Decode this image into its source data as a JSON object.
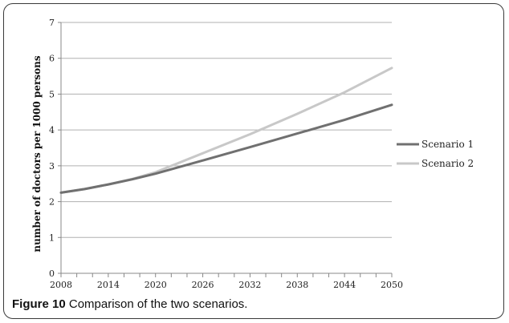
{
  "chart_data": {
    "type": "line",
    "title": "",
    "xlabel": "",
    "ylabel": "number of doctors per 1000 persons",
    "ylim": [
      0,
      7
    ],
    "xlim": [
      2008,
      2050
    ],
    "x_ticks": [
      "2008",
      "2014",
      "2020",
      "2026",
      "2032",
      "2038",
      "2044",
      "2050"
    ],
    "y_ticks": [
      "0",
      "1",
      "2",
      "3",
      "4",
      "5",
      "6",
      "7"
    ],
    "grid": "horizontal",
    "legend": "right",
    "series": [
      {
        "name": "Scenario 1",
        "color": "#707070",
        "x": [
          2008,
          2011,
          2014,
          2017,
          2020,
          2026,
          2032,
          2038,
          2044,
          2050
        ],
        "values": [
          2.25,
          2.35,
          2.48,
          2.62,
          2.78,
          3.15,
          3.52,
          3.9,
          4.28,
          4.7
        ]
      },
      {
        "name": "Scenario 2",
        "color": "#c8c8c8",
        "x": [
          2008,
          2011,
          2014,
          2017,
          2020,
          2026,
          2032,
          2038,
          2044,
          2050
        ],
        "values": [
          2.25,
          2.35,
          2.48,
          2.63,
          2.82,
          3.35,
          3.88,
          4.45,
          5.05,
          5.73
        ]
      }
    ]
  },
  "caption": {
    "figure_label": "Figure 10",
    "text": " Comparison of the two scenarios."
  }
}
